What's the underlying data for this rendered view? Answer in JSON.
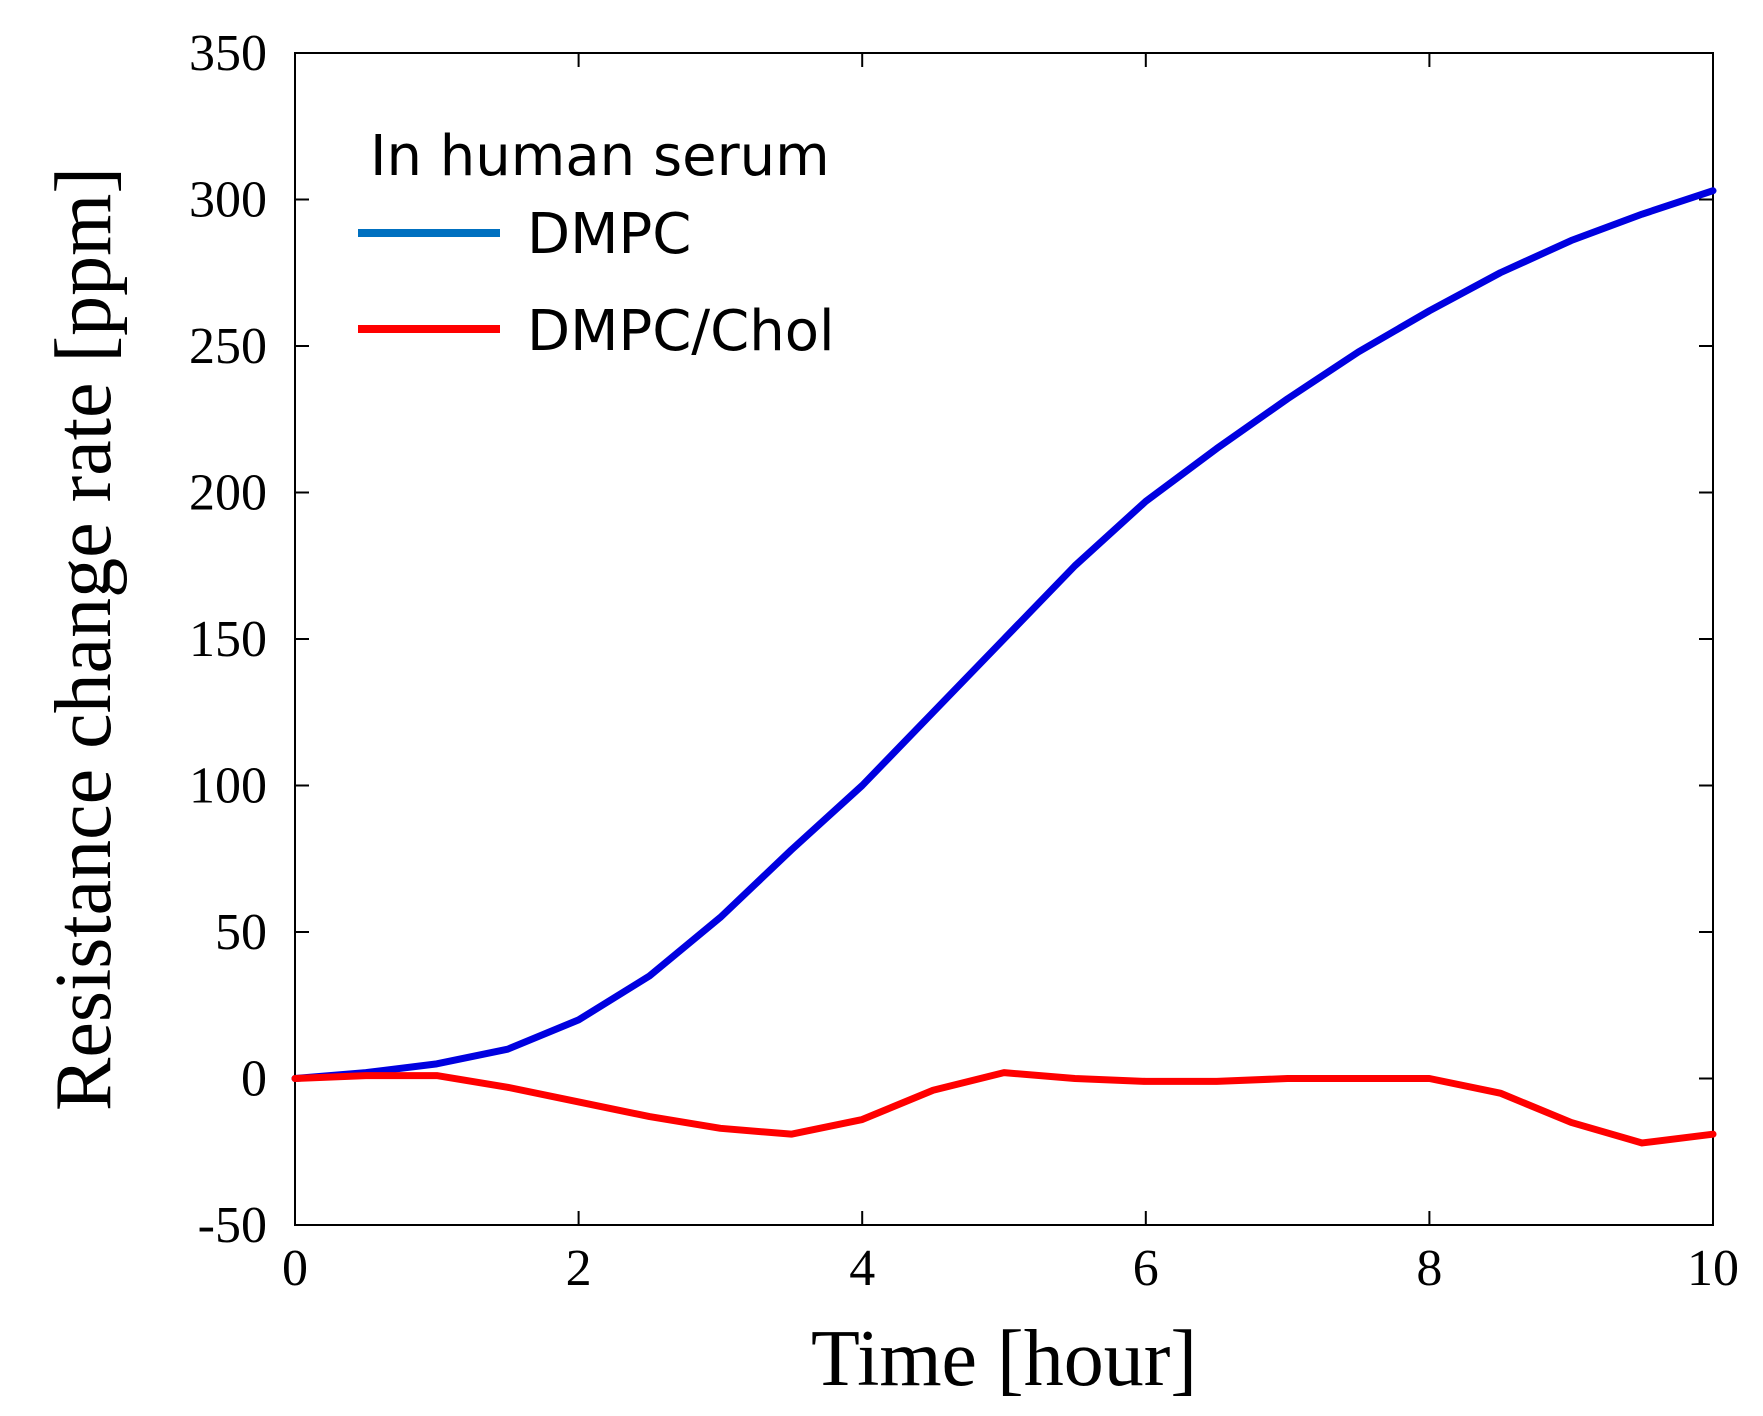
{
  "chart_data": {
    "type": "line",
    "title": "",
    "xlabel": "Time [hour]",
    "ylabel": "Resistance change rate [ppm]",
    "xlim": [
      0,
      10
    ],
    "ylim": [
      -50,
      350
    ],
    "xticks": [
      0,
      2,
      4,
      6,
      8,
      10
    ],
    "yticks": [
      -50,
      0,
      50,
      100,
      150,
      200,
      250,
      300,
      350
    ],
    "grid": false,
    "legend": {
      "title": "In human serum",
      "placement": "top-left"
    },
    "series": [
      {
        "name": "DMPC",
        "legend_color": "#0070C0",
        "line_color": "#0000E0",
        "x": [
          0,
          0.5,
          1.0,
          1.5,
          2.0,
          2.5,
          3.0,
          3.5,
          4.0,
          4.5,
          5.0,
          5.5,
          6.0,
          6.5,
          7.0,
          7.5,
          8.0,
          8.5,
          9.0,
          9.5,
          10.0
        ],
        "values": [
          0,
          2,
          5,
          10,
          20,
          35,
          55,
          78,
          100,
          125,
          150,
          175,
          197,
          215,
          232,
          248,
          262,
          275,
          286,
          295,
          303
        ]
      },
      {
        "name": "DMPC/Chol",
        "legend_color": "#FF0000",
        "line_color": "#FF0000",
        "x": [
          0,
          0.5,
          1.0,
          1.5,
          2.0,
          2.5,
          3.0,
          3.5,
          4.0,
          4.5,
          5.0,
          5.5,
          6.0,
          6.5,
          7.0,
          7.5,
          8.0,
          8.5,
          9.0,
          9.5,
          10.0
        ],
        "values": [
          0,
          1,
          1,
          -3,
          -8,
          -13,
          -17,
          -19,
          -14,
          -4,
          2,
          0,
          -1,
          -1,
          0,
          0,
          0,
          -5,
          -15,
          -22,
          -19
        ]
      }
    ]
  }
}
